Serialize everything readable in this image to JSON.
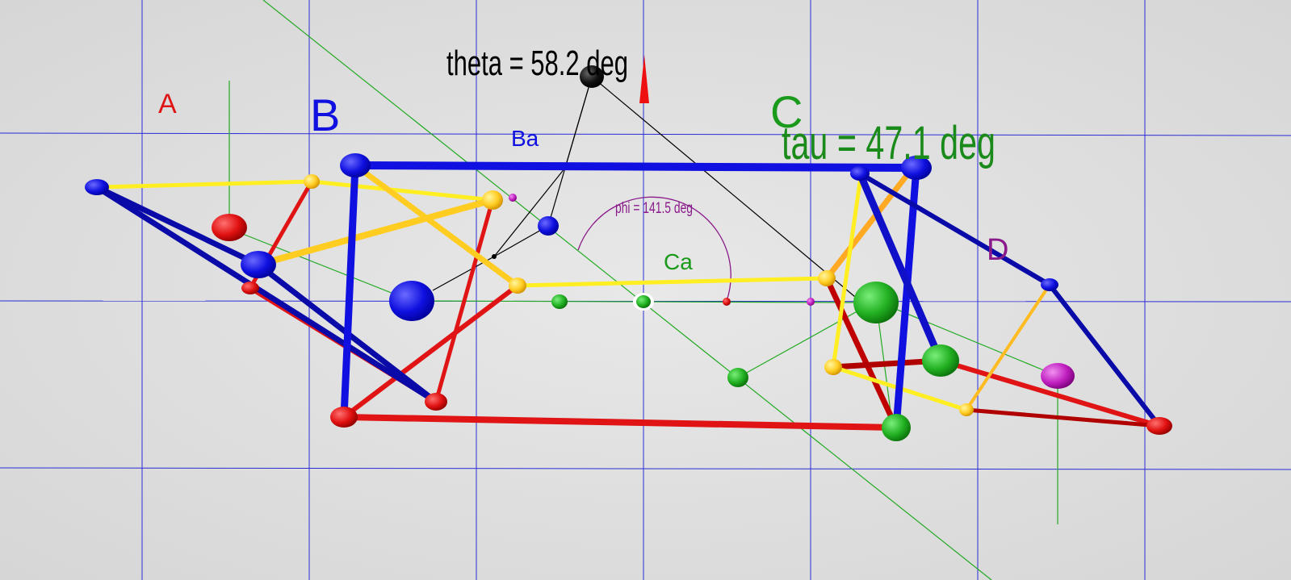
{
  "labels": {
    "A": "A",
    "B": "B",
    "C": "C",
    "D": "D",
    "Ba": "Ba",
    "Ca": "Ca",
    "theta": "theta = 58.2 deg",
    "tau": "tau = 47.1 deg",
    "phi": "phi = 141.5 deg"
  },
  "colors": {
    "background": "#dddddd",
    "grid": "#2b2bd6",
    "blue": "#1010d8",
    "navy": "#0a0aa0",
    "red": "#e01414",
    "darkred": "#b00000",
    "yellow": "#ffee22",
    "orange": "#ffbb22",
    "green": "#22aa22",
    "magenta": "#cc22cc",
    "black": "#000000",
    "arc": "#8a1a8a"
  }
}
